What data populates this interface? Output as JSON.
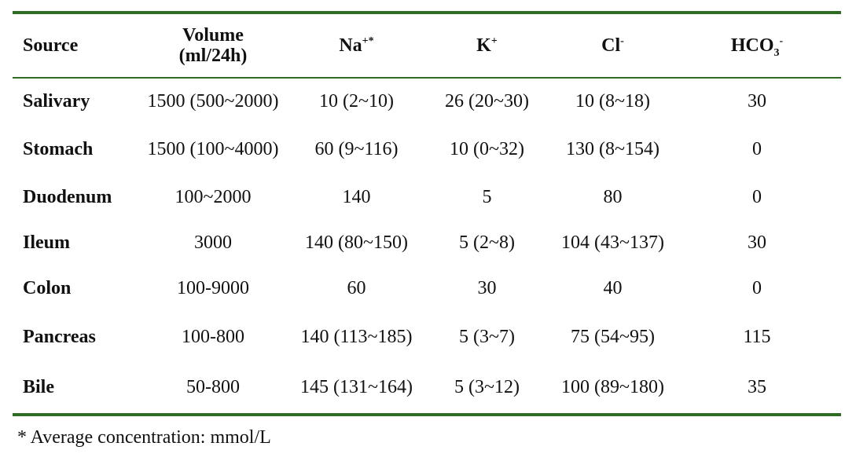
{
  "table": {
    "headers": {
      "source": "Source",
      "volume_line1": "Volume",
      "volume_line2": "(ml/24h)",
      "na": "Na",
      "na_sup": "+*",
      "k": "K",
      "k_sup": "+",
      "cl": "Cl",
      "cl_sup": "-",
      "hco3_base": "HCO",
      "hco3_sub": "3",
      "hco3_sup": "-"
    },
    "rows": [
      [
        "Salivary",
        "1500 (500~2000)",
        "10 (2~10)",
        "26 (20~30)",
        "10 (8~18)",
        "30"
      ],
      [
        "Stomach",
        "1500 (100~4000)",
        "60 (9~116)",
        "10 (0~32)",
        "130 (8~154)",
        "0"
      ],
      [
        "Duodenum",
        "100~2000",
        "140",
        "5",
        "80",
        "0"
      ],
      [
        "Ileum",
        "3000",
        "140 (80~150)",
        "5 (2~8)",
        "104 (43~137)",
        "30"
      ],
      [
        "Colon",
        "100-9000",
        "60",
        "30",
        "40",
        "0"
      ],
      [
        "Pancreas",
        "100-800",
        "140 (113~185)",
        "5 (3~7)",
        "75 (54~95)",
        "115"
      ],
      [
        "Bile",
        "50-800",
        "145 (131~164)",
        "5 (3~12)",
        "100 (89~180)",
        "35"
      ]
    ]
  },
  "footnote": "* Average concentration: mmol/L",
  "colors": {
    "rule": "#2f6b22",
    "text": "#111111",
    "background": "#ffffff"
  }
}
